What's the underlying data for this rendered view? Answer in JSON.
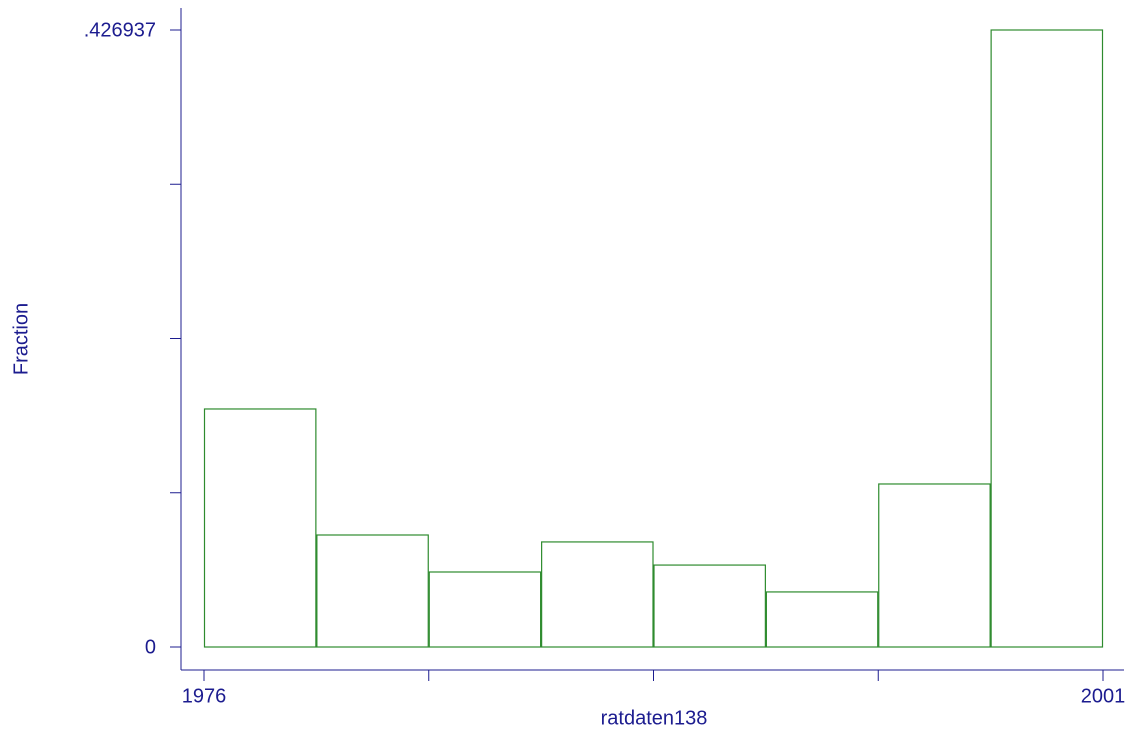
{
  "chart_data": {
    "type": "histogram",
    "x_label": "ratdaten138",
    "y_label": "Fraction",
    "bins": [
      1976,
      1979.125,
      1982.25,
      1985.375,
      1988.5,
      1991.625,
      1994.75,
      1997.875,
      2001
    ],
    "values": [
      0.1647,
      0.0775,
      0.0519,
      0.0727,
      0.0567,
      0.0381,
      0.1128,
      0.426937
    ],
    "color": "#2e8b2e",
    "xlim": [
      1976,
      2001
    ],
    "xticks": [
      1976,
      2001
    ],
    "x_minor_ticks": [
      1982.25,
      1988.5,
      1994.75
    ],
    "ylim": [
      0,
      0.426937
    ],
    "yticks": [
      0,
      {
        "value": 0.426937,
        "label": ".426937"
      }
    ],
    "y_minor_ticks": [
      0.106734,
      0.213469,
      0.320203
    ]
  }
}
